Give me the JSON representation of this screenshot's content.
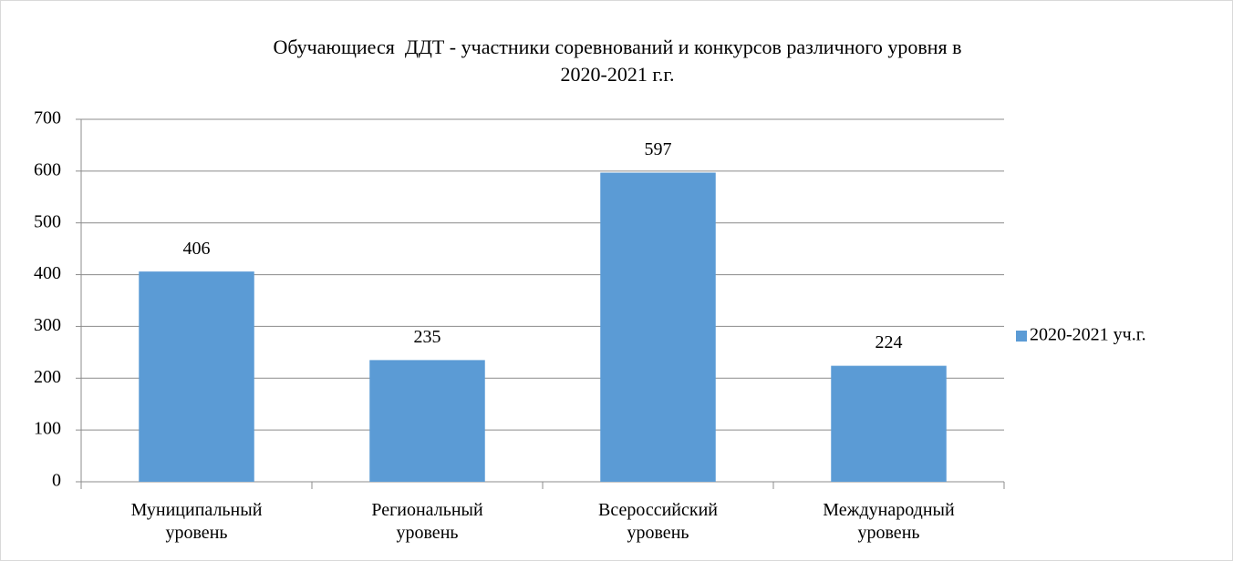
{
  "chart_data": {
    "type": "bar",
    "title": [
      "Обучающиеся  ДДТ - участники соревнований и конкурсов различного уровня в",
      "2020-2021 г.г."
    ],
    "categories": [
      "Муниципальный уровень",
      "Региональный уровень",
      "Всероссийский уровень",
      "Международный уровень"
    ],
    "series": [
      {
        "name": "2020-2021 уч.г.",
        "color": "#5b9bd5",
        "values": [
          406,
          235,
          597,
          224
        ]
      }
    ],
    "ylim": [
      0,
      700
    ],
    "yticks": [
      0,
      100,
      200,
      300,
      400,
      500,
      600,
      700
    ],
    "grid": true,
    "legend": "right",
    "data_labels": true
  }
}
